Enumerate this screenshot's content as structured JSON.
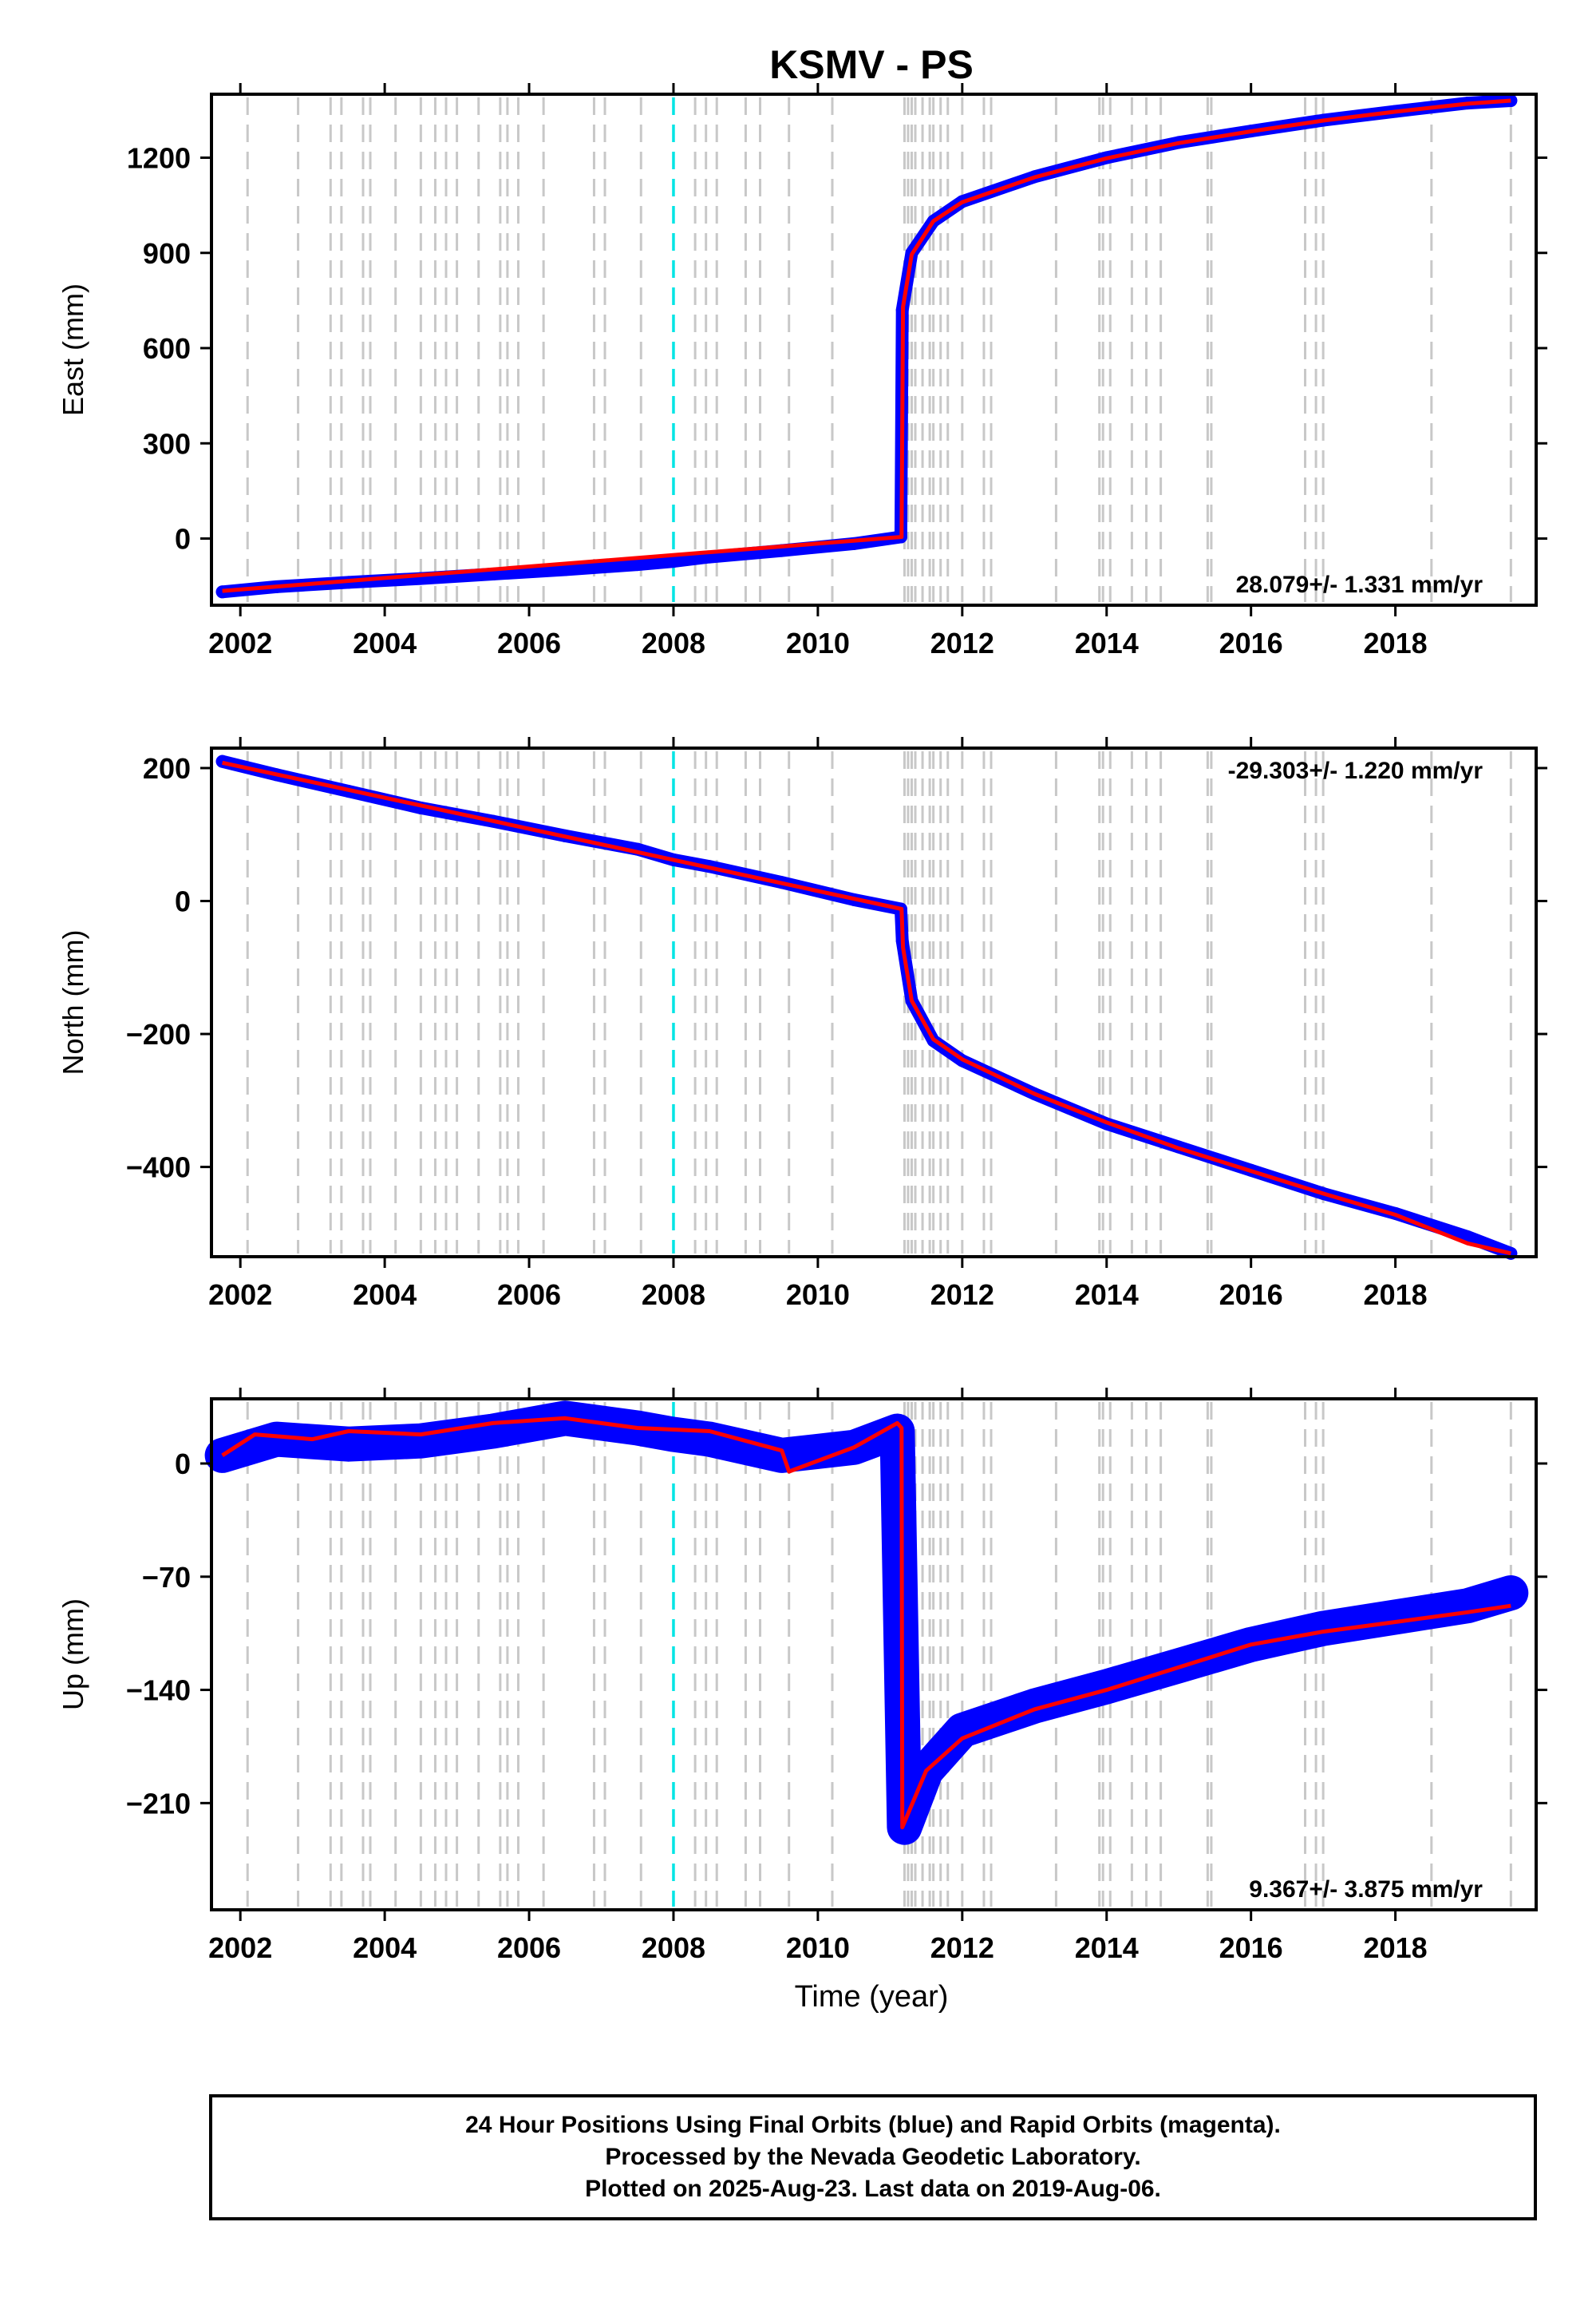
{
  "title": "KSMV - PS",
  "chart_data": [
    {
      "type": "scatter",
      "panel": "east",
      "ylabel": "East (mm)",
      "rate_label": "28.079+/- 1.331 mm/yr",
      "xlim": [
        2001.6,
        2019.95
      ],
      "ylim": [
        -210,
        1400
      ],
      "y_ticks": [
        0,
        300,
        600,
        900,
        1200
      ],
      "y_tick_labels": [
        "0",
        "300",
        "600",
        "900",
        "1200"
      ],
      "x_ticks": [
        2002,
        2004,
        2006,
        2008,
        2010,
        2012,
        2014,
        2016,
        2018
      ],
      "x_tick_labels": [
        "2002",
        "2004",
        "2006",
        "2008",
        "2010",
        "2012",
        "2014",
        "2016",
        "2018"
      ],
      "series": [
        {
          "points": [
            [
              2001.75,
              -168
            ],
            [
              2002.5,
              -152
            ],
            [
              2003.5,
              -138
            ],
            [
              2004.5,
              -126
            ],
            [
              2005.5,
              -112
            ],
            [
              2006.5,
              -98
            ],
            [
              2007.5,
              -82
            ],
            [
              2008.0,
              -72
            ],
            [
              2008.5,
              -58
            ],
            [
              2009.5,
              -38
            ],
            [
              2010.5,
              -16
            ],
            [
              2011.15,
              5
            ],
            [
              2011.17,
              720
            ],
            [
              2011.3,
              900
            ],
            [
              2011.6,
              1000
            ],
            [
              2012.0,
              1062
            ],
            [
              2013.0,
              1140
            ],
            [
              2014.0,
              1200
            ],
            [
              2015.0,
              1248
            ],
            [
              2016.0,
              1284
            ],
            [
              2017.0,
              1318
            ],
            [
              2018.0,
              1346
            ],
            [
              2019.0,
              1372
            ],
            [
              2019.6,
              1380
            ]
          ]
        },
        {
          "points": [
            [
              2001.75,
              -165
            ],
            [
              2011.16,
              5
            ],
            [
              2011.18,
              730
            ],
            [
              2011.3,
              895
            ],
            [
              2011.6,
              1000
            ],
            [
              2012.0,
              1060
            ],
            [
              2013.0,
              1138
            ],
            [
              2014.0,
              1198
            ],
            [
              2015.0,
              1246
            ],
            [
              2016.0,
              1283
            ],
            [
              2017.0,
              1317
            ],
            [
              2018.0,
              1345
            ],
            [
              2019.0,
              1370
            ],
            [
              2019.6,
              1380
            ]
          ]
        }
      ]
    },
    {
      "type": "scatter",
      "panel": "north",
      "ylabel": "North (mm)",
      "rate_label": "-29.303+/- 1.220 mm/yr",
      "xlim": [
        2001.6,
        2019.95
      ],
      "ylim": [
        -535,
        230
      ],
      "y_ticks": [
        -400,
        -200,
        0,
        200
      ],
      "y_tick_labels": [
        "−400",
        "−200",
        "0",
        "200"
      ],
      "x_ticks": [
        2002,
        2004,
        2006,
        2008,
        2010,
        2012,
        2014,
        2016,
        2018
      ],
      "x_tick_labels": [
        "2002",
        "2004",
        "2006",
        "2008",
        "2010",
        "2012",
        "2014",
        "2016",
        "2018"
      ],
      "series": [
        {
          "points": [
            [
              2001.75,
              210
            ],
            [
              2002.5,
              190
            ],
            [
              2003.5,
              165
            ],
            [
              2004.5,
              140
            ],
            [
              2005.5,
              120
            ],
            [
              2006.5,
              98
            ],
            [
              2007.5,
              78
            ],
            [
              2008.0,
              62
            ],
            [
              2008.5,
              52
            ],
            [
              2009.5,
              28
            ],
            [
              2010.5,
              2
            ],
            [
              2011.15,
              -12
            ],
            [
              2011.17,
              -60
            ],
            [
              2011.3,
              -150
            ],
            [
              2011.6,
              -210
            ],
            [
              2012.0,
              -240
            ],
            [
              2013.0,
              -290
            ],
            [
              2014.0,
              -335
            ],
            [
              2015.0,
              -370
            ],
            [
              2016.0,
              -405
            ],
            [
              2017.0,
              -440
            ],
            [
              2018.0,
              -470
            ],
            [
              2019.0,
              -505
            ],
            [
              2019.6,
              -530
            ]
          ]
        },
        {
          "points": [
            [
              2001.75,
              208
            ],
            [
              2011.16,
              -12
            ],
            [
              2011.18,
              -70
            ],
            [
              2011.3,
              -150
            ],
            [
              2011.6,
              -208
            ],
            [
              2012.0,
              -238
            ],
            [
              2013.0,
              -290
            ],
            [
              2014.0,
              -333
            ],
            [
              2015.0,
              -372
            ],
            [
              2016.0,
              -406
            ],
            [
              2017.0,
              -440
            ],
            [
              2018.0,
              -472
            ],
            [
              2019.0,
              -515
            ],
            [
              2019.6,
              -530
            ]
          ]
        }
      ]
    },
    {
      "type": "scatter",
      "panel": "up",
      "ylabel": "Up (mm)",
      "rate_label": "9.367+/- 3.875 mm/yr",
      "xlim": [
        2001.6,
        2019.95
      ],
      "ylim": [
        -276,
        40
      ],
      "y_ticks": [
        -210,
        -140,
        -70,
        0
      ],
      "y_tick_labels": [
        "−210",
        "−140",
        "−70",
        "0"
      ],
      "x_ticks": [
        2002,
        2004,
        2006,
        2008,
        2010,
        2012,
        2014,
        2016,
        2018
      ],
      "x_tick_labels": [
        "2002",
        "2004",
        "2006",
        "2008",
        "2010",
        "2012",
        "2014",
        "2016",
        "2018"
      ],
      "xlabel": "Time (year)",
      "series": [
        {
          "points": [
            [
              2001.75,
              5
            ],
            [
              2002.5,
              15
            ],
            [
              2003.5,
              12
            ],
            [
              2004.5,
              14
            ],
            [
              2005.5,
              20
            ],
            [
              2006.5,
              28
            ],
            [
              2007.5,
              22
            ],
            [
              2008.0,
              18
            ],
            [
              2008.5,
              15
            ],
            [
              2009.5,
              5
            ],
            [
              2010.5,
              10
            ],
            [
              2011.1,
              20
            ],
            [
              2011.2,
              -225
            ],
            [
              2011.5,
              -190
            ],
            [
              2012.0,
              -165
            ],
            [
              2013.0,
              -150
            ],
            [
              2014.0,
              -138
            ],
            [
              2015.0,
              -125
            ],
            [
              2016.0,
              -112
            ],
            [
              2017.0,
              -102
            ],
            [
              2018.0,
              -95
            ],
            [
              2019.0,
              -88
            ],
            [
              2019.6,
              -80
            ]
          ]
        },
        {
          "points": [
            [
              2001.75,
              5
            ],
            [
              2002.2,
              18
            ],
            [
              2003.0,
              15
            ],
            [
              2003.5,
              20
            ],
            [
              2004.5,
              18
            ],
            [
              2005.5,
              25
            ],
            [
              2006.5,
              28
            ],
            [
              2007.5,
              22
            ],
            [
              2008.5,
              20
            ],
            [
              2009.5,
              8
            ],
            [
              2009.6,
              -5
            ],
            [
              2010.5,
              10
            ],
            [
              2011.1,
              25
            ],
            [
              2011.16,
              22
            ],
            [
              2011.17,
              -225
            ],
            [
              2011.5,
              -190
            ],
            [
              2012.0,
              -170
            ],
            [
              2013.0,
              -152
            ],
            [
              2014.0,
              -140
            ],
            [
              2015.0,
              -126
            ],
            [
              2016.0,
              -112
            ],
            [
              2017.0,
              -104
            ],
            [
              2018.0,
              -98
            ],
            [
              2019.0,
              -92
            ],
            [
              2019.6,
              -88
            ]
          ]
        }
      ]
    }
  ],
  "event_lines": {
    "gray_years": [
      2002.1,
      2002.8,
      2003.25,
      2003.4,
      2003.7,
      2003.8,
      2004.15,
      2004.5,
      2004.7,
      2004.85,
      2005.0,
      2005.3,
      2005.6,
      2005.7,
      2005.85,
      2006.2,
      2006.9,
      2007.05,
      2007.55,
      2008.3,
      2008.45,
      2008.6,
      2009.0,
      2009.2,
      2009.6,
      2010.2,
      2011.2,
      2011.25,
      2011.3,
      2011.35,
      2011.45,
      2011.55,
      2011.6,
      2011.7,
      2011.8,
      2012.0,
      2012.3,
      2012.4,
      2013.3,
      2013.9,
      2013.95,
      2014.05,
      2014.35,
      2014.55,
      2014.75,
      2015.4,
      2015.45,
      2016.75,
      2016.9,
      2017.0,
      2018.5,
      2019.6
    ],
    "cyan_years": [
      2008.0
    ]
  },
  "colors": {
    "final_orbits": "#0000ff",
    "model_fit": "#ff0000",
    "event_line": "#c8c8c8",
    "antenna_change": "#00e5e5"
  },
  "caption": {
    "line1": "24 Hour Positions Using Final Orbits (blue) and Rapid Orbits (magenta).",
    "line2": "Processed by the Nevada Geodetic Laboratory.",
    "line3": "Plotted on 2025-Aug-23. Last data on 2019-Aug-06."
  }
}
